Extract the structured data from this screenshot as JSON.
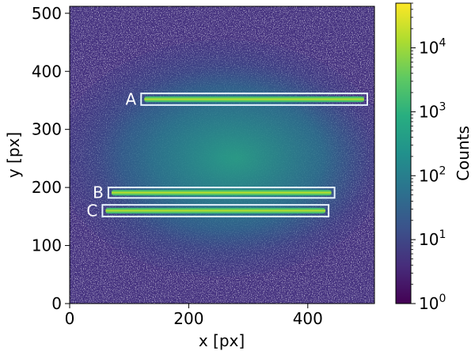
{
  "chart_data": {
    "type": "heatmap",
    "title": "",
    "xlabel": "x [px]",
    "ylabel": "y [px]",
    "xlim": [
      0,
      512
    ],
    "ylim": [
      0,
      512
    ],
    "x_ticks": [
      "0",
      "200",
      "400"
    ],
    "x_tick_values": [
      0,
      200,
      400
    ],
    "y_ticks": [
      "0",
      "100",
      "200",
      "300",
      "400",
      "500"
    ],
    "y_tick_values": [
      0,
      100,
      200,
      300,
      400,
      500
    ],
    "colorbar": {
      "label": "Counts",
      "scale": "log",
      "range": [
        1,
        50000
      ],
      "ticks": [
        {
          "value": 1,
          "base": "10",
          "exp": "0"
        },
        {
          "value": 10,
          "base": "10",
          "exp": "1"
        },
        {
          "value": 100,
          "base": "10",
          "exp": "2"
        },
        {
          "value": 1000,
          "base": "10",
          "exp": "3"
        },
        {
          "value": 10000,
          "base": "10",
          "exp": "4"
        }
      ],
      "colormap": "viridis"
    },
    "regions": [
      {
        "label": "A",
        "x0": 120,
        "x1": 500,
        "y0": 342,
        "y1": 362
      },
      {
        "label": "B",
        "x0": 65,
        "x1": 445,
        "y0": 182,
        "y1": 200
      },
      {
        "label": "C",
        "x0": 55,
        "x1": 435,
        "y0": 150,
        "y1": 170
      }
    ],
    "colors": {
      "viridis": [
        "#440154",
        "#472d7b",
        "#3b528b",
        "#2c728e",
        "#21918c",
        "#28ae80",
        "#5ec962",
        "#addc30",
        "#fde725"
      ],
      "region_outline": "#e8f4ff"
    }
  }
}
